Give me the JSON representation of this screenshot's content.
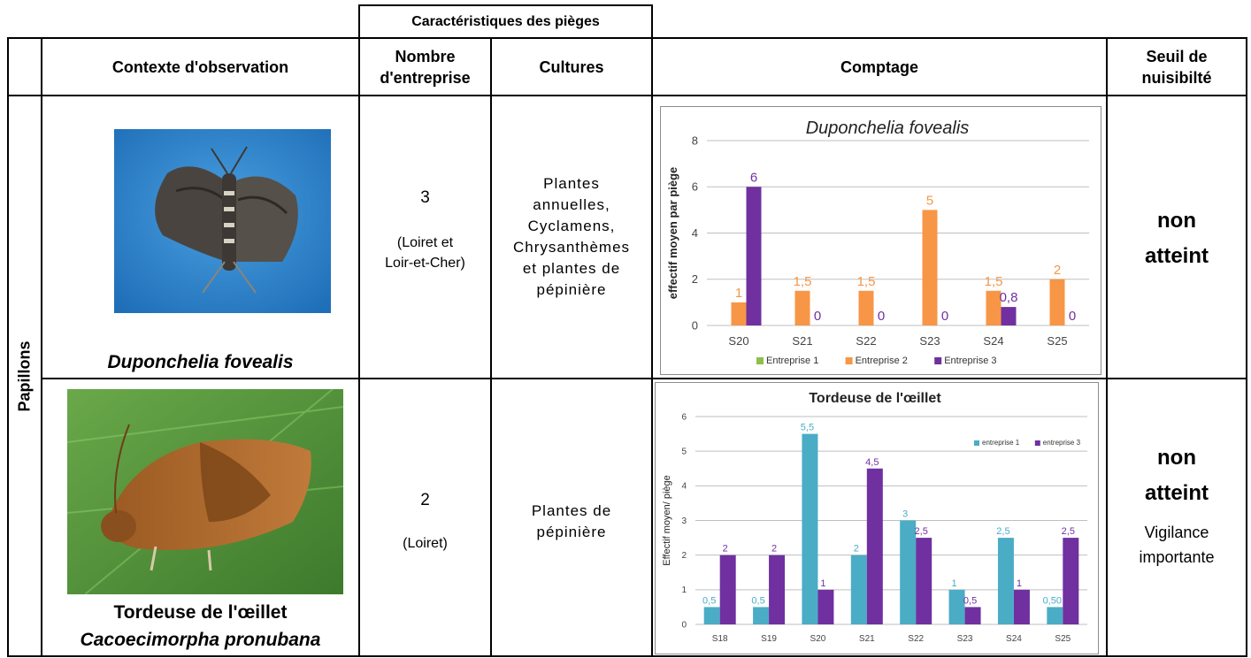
{
  "header": {
    "group_title": "Caractéristiques des pièges",
    "col_context": "Contexte d'observation",
    "col_count_line1": "Nombre",
    "col_count_line2": "d'entreprise",
    "col_crops": "Cultures",
    "col_counting": "Comptage",
    "col_threshold_line1": "Seuil de",
    "col_threshold_line2": "nuisibilté"
  },
  "row_group_label": "Papillons",
  "rows": [
    {
      "species_italic": "Duponchelia fovealis",
      "photo_icon": "moth-photo-duponchelia",
      "count": "3",
      "region_line1": "(Loiret et",
      "region_line2": "Loir-et-Cher)",
      "crops": [
        "Plantes",
        "annuelles,",
        "Cyclamens,",
        "Chrysanthèmes",
        "et plantes de",
        "pépinière"
      ],
      "status_line1": "non",
      "status_line2": "atteint"
    },
    {
      "species_common": "Tordeuse de l'œillet",
      "species_italic": "Cacoecimorpha pronubana",
      "photo_icon": "moth-photo-tordeuse",
      "count": "2",
      "region_line1": "(Loiret)",
      "crops": [
        "Plantes de",
        "pépinière"
      ],
      "status_line1": "non",
      "status_line2": "atteint",
      "note_line1": "Vigilance",
      "note_line2": "importante"
    }
  ],
  "chart_data": [
    {
      "type": "bar",
      "title": "Duponchelia fovealis",
      "ylabel": "effectif moyen par piège",
      "xlabel": "",
      "ylim": [
        0,
        8
      ],
      "yticks": [
        0,
        2,
        4,
        6,
        8
      ],
      "grid": true,
      "legend_position": "bottom",
      "categories": [
        "S20",
        "S21",
        "S22",
        "S23",
        "S24",
        "S25"
      ],
      "series": [
        {
          "name": "Entreprise 1",
          "color": "#8dbf4b",
          "values": [
            null,
            null,
            null,
            null,
            null,
            null
          ],
          "labels": [
            "",
            "",
            "",
            "",
            "",
            ""
          ]
        },
        {
          "name": "Entreprise 2",
          "color": "#f79646",
          "values": [
            1,
            1.5,
            1.5,
            5,
            1.5,
            2
          ],
          "labels": [
            "1",
            "1,5",
            "1,5",
            "5",
            "1,5",
            "2"
          ]
        },
        {
          "name": "Entreprise 3",
          "color": "#7030a0",
          "values": [
            6,
            0,
            0,
            0,
            0.8,
            0
          ],
          "labels": [
            "6",
            "0",
            "0",
            "0",
            "0,8",
            "0"
          ]
        }
      ]
    },
    {
      "type": "bar",
      "title": "Tordeuse de l'œillet",
      "ylabel": "Effectif moyen/ piège",
      "xlabel": "",
      "ylim": [
        0,
        6
      ],
      "yticks": [
        0,
        1,
        2,
        3,
        4,
        5,
        6
      ],
      "grid": true,
      "legend_position": "top-right",
      "categories": [
        "S18",
        "S19",
        "S20",
        "S21",
        "S22",
        "S23",
        "S24",
        "S25"
      ],
      "series": [
        {
          "name": "entreprise 1",
          "color": "#4bacc6",
          "values": [
            0.5,
            0.5,
            5.5,
            2,
            3,
            1,
            2.5,
            0.5
          ],
          "labels": [
            "0,5",
            "0,5",
            "5,5",
            "2",
            "3",
            "1",
            "2,5",
            "0,50"
          ]
        },
        {
          "name": "entreprise 3",
          "color": "#7030a0",
          "values": [
            2,
            2,
            1,
            4.5,
            2.5,
            0.5,
            1,
            2.5
          ],
          "labels": [
            "2",
            "2",
            "1",
            "4,5",
            "2,5",
            "0,5",
            "1",
            "2,5"
          ]
        }
      ]
    }
  ]
}
